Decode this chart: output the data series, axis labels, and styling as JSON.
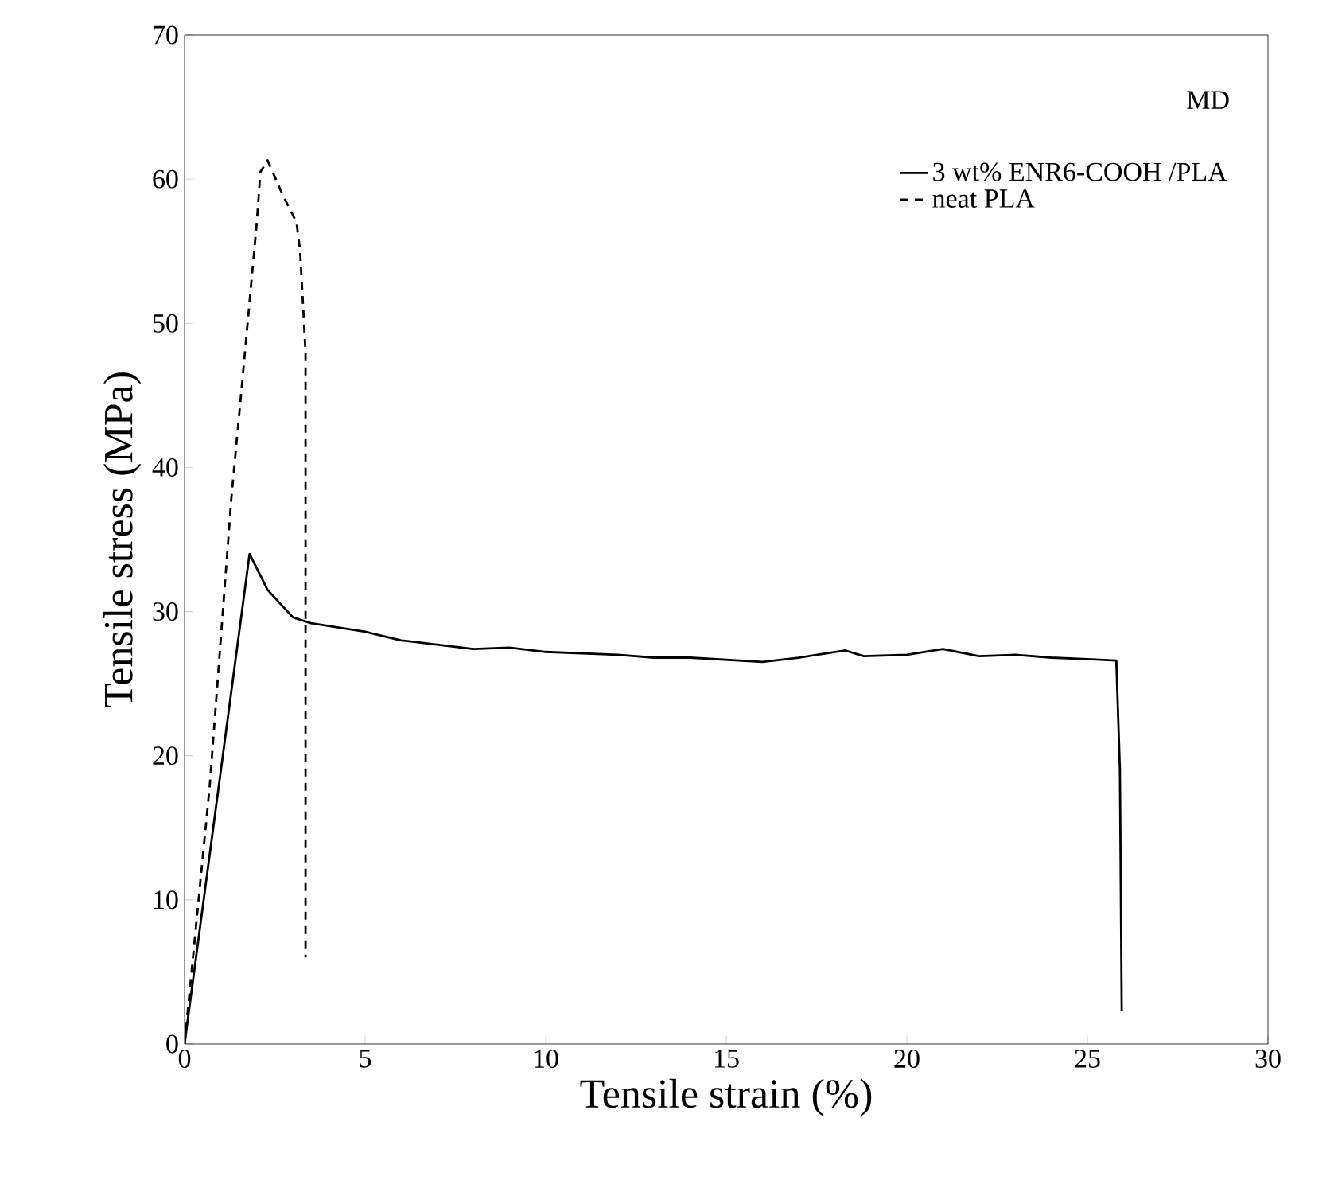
{
  "chart_data": {
    "type": "line",
    "xlabel": "Tensile strain (%)",
    "ylabel": "Tensile stress (MPa)",
    "annotations": [
      "MD"
    ],
    "xlim": [
      0,
      30
    ],
    "ylim": [
      0,
      70
    ],
    "xticks": [
      0,
      5,
      10,
      15,
      20,
      25,
      30
    ],
    "yticks": [
      0,
      10,
      20,
      30,
      40,
      50,
      60,
      70
    ],
    "grid": false,
    "legend": "top right",
    "marker": "none",
    "series": [
      {
        "name": "3 wt% ENR6-COOH /PLA",
        "color": "#000000",
        "line_style": "solid",
        "x": [
          0,
          1.8,
          2.3,
          3,
          3.5,
          5,
          6,
          8,
          9,
          10,
          12,
          13,
          14,
          16,
          17,
          18.3,
          18.8,
          20,
          21,
          22,
          23,
          24,
          25,
          25.8,
          25.9,
          25.95
        ],
        "values": [
          0,
          34,
          31.5,
          29.6,
          29.2,
          28.6,
          28,
          27.4,
          27.5,
          27.2,
          27,
          26.8,
          26.8,
          26.5,
          26.8,
          27.3,
          26.9,
          27,
          27.4,
          26.9,
          27,
          26.8,
          26.7,
          26.6,
          19,
          2.3
        ]
      },
      {
        "name": "neat PLA",
        "color": "#000000",
        "line_style": "dashed",
        "x": [
          0,
          0.7,
          1.3,
          1.6,
          2.0,
          2.1,
          2.3,
          2.7,
          3.1,
          3.2,
          3.35,
          3.35
        ],
        "values": [
          0,
          18,
          38,
          46,
          57,
          60.5,
          61.3,
          59,
          57,
          55,
          48,
          6
        ]
      }
    ]
  }
}
